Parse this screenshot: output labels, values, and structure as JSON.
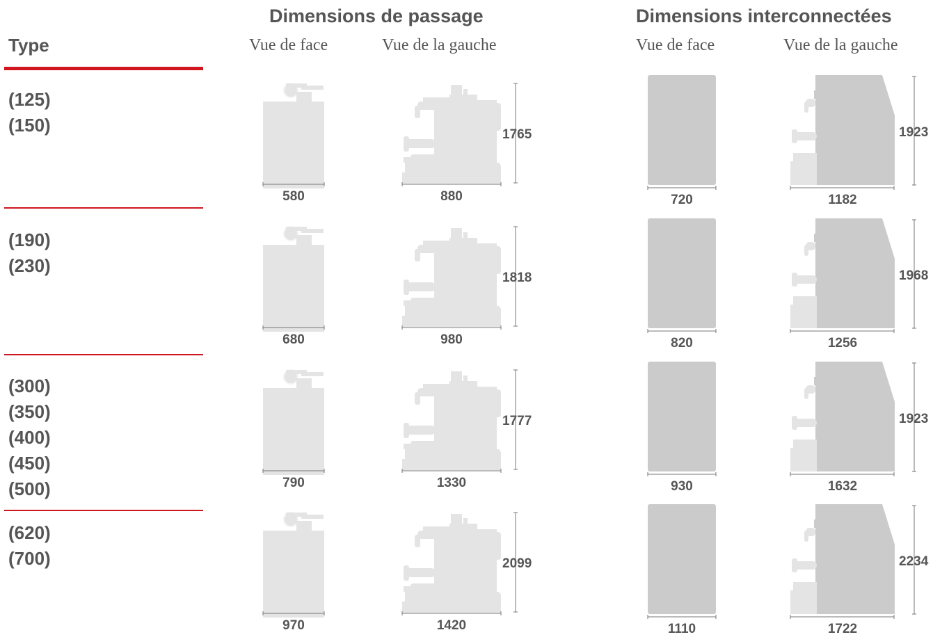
{
  "headers": {
    "type_label": "Type",
    "passage": {
      "title": "Dimensions de passage",
      "front": "Vue de face",
      "left": "Vue de la gauche"
    },
    "interconnected": {
      "title": "Dimensions interconnectées",
      "front": "Vue de face",
      "left": "Vue de la gauche"
    }
  },
  "colors": {
    "accent": "#d0161e",
    "text": "#555555",
    "passage_fill": "#e4e4e4",
    "interconnected_fill": "#cbcbcb"
  },
  "rows": [
    {
      "types": [
        "(125)",
        "(150)"
      ],
      "passage": {
        "front_width": "580",
        "left_width": "880",
        "height": "1765"
      },
      "interconnected": {
        "front_width": "720",
        "left_width": "1182",
        "height": "1923"
      }
    },
    {
      "types": [
        "(190)",
        "(230)"
      ],
      "passage": {
        "front_width": "680",
        "left_width": "980",
        "height": "1818"
      },
      "interconnected": {
        "front_width": "820",
        "left_width": "1256",
        "height": "1968"
      }
    },
    {
      "types": [
        "(300)",
        "(350)",
        "(400)",
        "(450)",
        "(500)"
      ],
      "passage": {
        "front_width": "790",
        "left_width": "1330",
        "height": "1777"
      },
      "interconnected": {
        "front_width": "930",
        "left_width": "1632",
        "height": "1923"
      }
    },
    {
      "types": [
        "(620)",
        "(700)"
      ],
      "passage": {
        "front_width": "970",
        "left_width": "1420",
        "height": "2099"
      },
      "interconnected": {
        "front_width": "1110",
        "left_width": "1722",
        "height": "2234"
      }
    }
  ]
}
